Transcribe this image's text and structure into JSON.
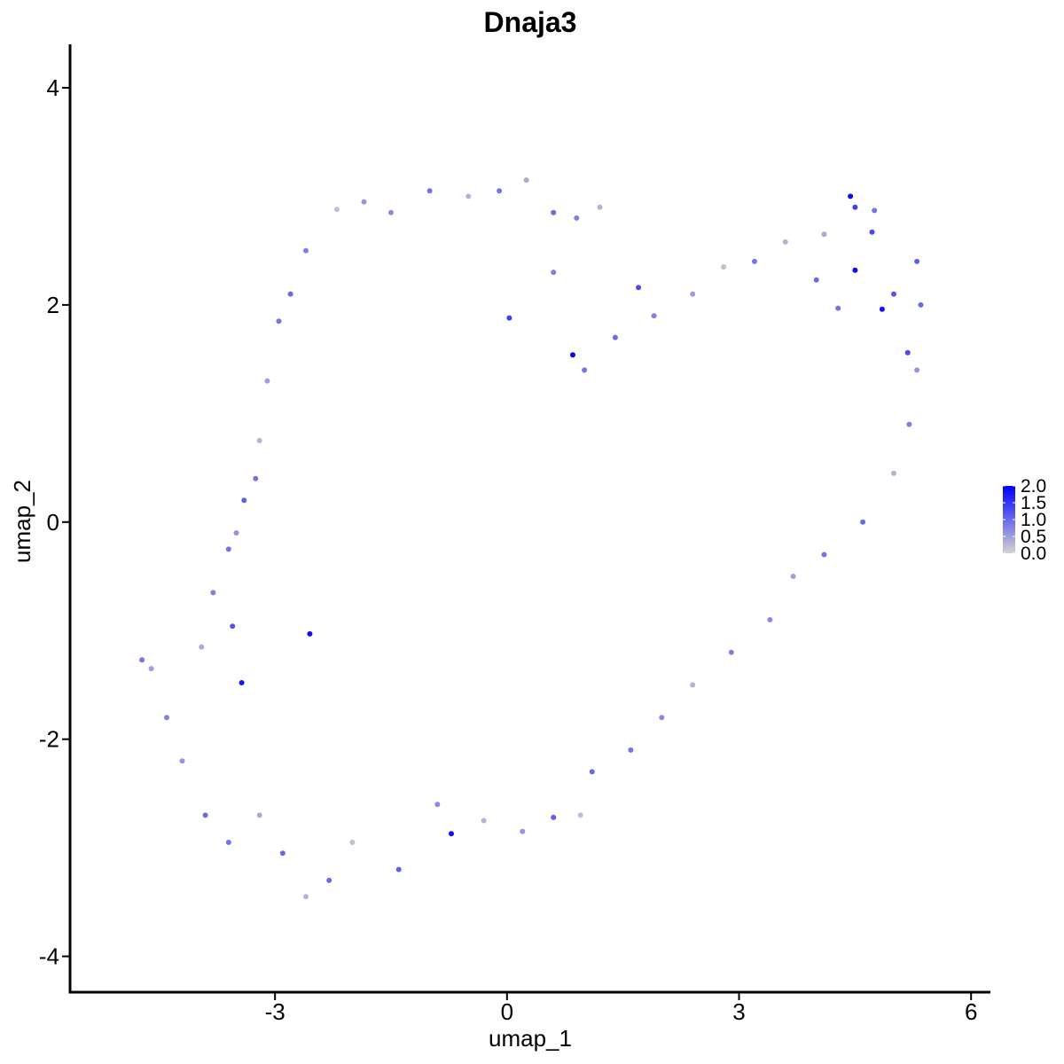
{
  "chart_data": {
    "type": "scatter",
    "title": "Dnaja3",
    "xlabel": "umap_1",
    "ylabel": "umap_2",
    "xlim": [
      -5.65,
      6.25
    ],
    "ylim": [
      -4.33,
      4.4
    ],
    "xticks": [
      -3,
      0,
      3,
      6
    ],
    "yticks": [
      -4,
      -2,
      0,
      2,
      4
    ],
    "xtick_labels": [
      "-3",
      "0",
      "3",
      "6"
    ],
    "ytick_labels": [
      "-4",
      "-2",
      "0",
      "2",
      "4"
    ],
    "grid": false,
    "point_size": 3,
    "color_scale": {
      "low": "#d3d3d3",
      "high": "#0000ff",
      "min": 0,
      "max": 2.0,
      "breaks": [
        2.0,
        1.5,
        1.0,
        0.5,
        0.0
      ],
      "break_labels": [
        "2.0",
        "1.5",
        "1.0",
        "0.5",
        "0.0"
      ]
    },
    "legend_position": "right",
    "points": [
      {
        "x": 4.44,
        "y": 3.0,
        "v": 1.9
      },
      {
        "x": 4.5,
        "y": 2.32,
        "v": 1.9
      },
      {
        "x": 4.85,
        "y": 1.96,
        "v": 1.85
      },
      {
        "x": 4.5,
        "y": 2.9,
        "v": 1.4
      },
      {
        "x": 4.72,
        "y": 2.67,
        "v": 1.3
      },
      {
        "x": 5.0,
        "y": 2.1,
        "v": 1.2
      },
      {
        "x": 5.18,
        "y": 1.56,
        "v": 1.3
      },
      {
        "x": 4.28,
        "y": 1.97,
        "v": 0.9
      },
      {
        "x": 4.0,
        "y": 2.23,
        "v": 1.0
      },
      {
        "x": 0.85,
        "y": 1.54,
        "v": 1.95
      },
      {
        "x": -2.55,
        "y": -1.03,
        "v": 1.9
      },
      {
        "x": -3.43,
        "y": -1.48,
        "v": 1.8
      },
      {
        "x": -0.72,
        "y": -2.87,
        "v": 1.9
      },
      {
        "x": 0.03,
        "y": 1.88,
        "v": 1.4
      },
      {
        "x": 1.7,
        "y": 2.16,
        "v": 1.3
      },
      {
        "x": -3.55,
        "y": -0.96,
        "v": 1.2
      },
      {
        "x": -4.72,
        "y": -1.27,
        "v": 0.9
      },
      {
        "x": -4.6,
        "y": -1.35,
        "v": 0.5
      },
      {
        "x": -4.4,
        "y": -1.8,
        "v": 0.8
      },
      {
        "x": -4.2,
        "y": -2.2,
        "v": 0.6
      },
      {
        "x": -3.9,
        "y": -2.7,
        "v": 1.0
      },
      {
        "x": -3.6,
        "y": -2.95,
        "v": 0.9
      },
      {
        "x": -3.2,
        "y": -2.7,
        "v": 0.4
      },
      {
        "x": -2.9,
        "y": -3.05,
        "v": 1.0
      },
      {
        "x": -2.6,
        "y": -3.45,
        "v": 0.3
      },
      {
        "x": -2.3,
        "y": -3.3,
        "v": 1.0
      },
      {
        "x": -2.0,
        "y": -2.95,
        "v": 0.2
      },
      {
        "x": -1.4,
        "y": -3.2,
        "v": 1.1
      },
      {
        "x": -0.9,
        "y": -2.6,
        "v": 0.7
      },
      {
        "x": -0.3,
        "y": -2.75,
        "v": 0.3
      },
      {
        "x": 0.2,
        "y": -2.85,
        "v": 0.6
      },
      {
        "x": 0.6,
        "y": -2.72,
        "v": 1.1
      },
      {
        "x": 0.95,
        "y": -2.7,
        "v": 0.2
      },
      {
        "x": 1.1,
        "y": -2.3,
        "v": 1.0
      },
      {
        "x": 1.6,
        "y": -2.1,
        "v": 0.9
      },
      {
        "x": 2.0,
        "y": -1.8,
        "v": 0.7
      },
      {
        "x": 2.4,
        "y": -1.5,
        "v": 0.3
      },
      {
        "x": 2.9,
        "y": -1.2,
        "v": 0.8
      },
      {
        "x": 3.4,
        "y": -0.9,
        "v": 0.7
      },
      {
        "x": 3.7,
        "y": -0.5,
        "v": 0.5
      },
      {
        "x": 4.1,
        "y": -0.3,
        "v": 0.9
      },
      {
        "x": 4.6,
        "y": 0.0,
        "v": 1.0
      },
      {
        "x": 5.0,
        "y": 0.45,
        "v": 0.3
      },
      {
        "x": 5.2,
        "y": 0.9,
        "v": 0.8
      },
      {
        "x": 5.3,
        "y": 1.4,
        "v": 0.6
      },
      {
        "x": 5.35,
        "y": 2.0,
        "v": 1.0
      },
      {
        "x": 5.3,
        "y": 2.4,
        "v": 1.1
      },
      {
        "x": 4.75,
        "y": 2.87,
        "v": 0.9
      },
      {
        "x": 4.1,
        "y": 2.65,
        "v": 0.4
      },
      {
        "x": 3.6,
        "y": 2.58,
        "v": 0.3
      },
      {
        "x": 3.2,
        "y": 2.4,
        "v": 0.9
      },
      {
        "x": 2.8,
        "y": 2.35,
        "v": 0.2
      },
      {
        "x": 2.4,
        "y": 2.1,
        "v": 0.5
      },
      {
        "x": 1.9,
        "y": 1.9,
        "v": 0.8
      },
      {
        "x": 1.4,
        "y": 1.7,
        "v": 1.0
      },
      {
        "x": 1.0,
        "y": 1.4,
        "v": 0.9
      },
      {
        "x": 0.6,
        "y": 2.3,
        "v": 0.8
      },
      {
        "x": 1.2,
        "y": 2.9,
        "v": 0.3
      },
      {
        "x": 0.9,
        "y": 2.8,
        "v": 0.8
      },
      {
        "x": 0.6,
        "y": 2.85,
        "v": 1.0
      },
      {
        "x": 0.25,
        "y": 3.15,
        "v": 0.4
      },
      {
        "x": -0.1,
        "y": 3.05,
        "v": 0.9
      },
      {
        "x": -0.5,
        "y": 3.0,
        "v": 0.3
      },
      {
        "x": -1.0,
        "y": 3.05,
        "v": 0.9
      },
      {
        "x": -1.5,
        "y": 2.85,
        "v": 0.7
      },
      {
        "x": -1.85,
        "y": 2.95,
        "v": 0.6
      },
      {
        "x": -2.2,
        "y": 2.88,
        "v": 0.2
      },
      {
        "x": -2.6,
        "y": 2.5,
        "v": 0.8
      },
      {
        "x": -2.8,
        "y": 2.1,
        "v": 1.0
      },
      {
        "x": -2.95,
        "y": 1.85,
        "v": 0.9
      },
      {
        "x": -3.1,
        "y": 1.3,
        "v": 0.5
      },
      {
        "x": -3.2,
        "y": 0.75,
        "v": 0.3
      },
      {
        "x": -3.25,
        "y": 0.4,
        "v": 0.9
      },
      {
        "x": -3.4,
        "y": 0.2,
        "v": 1.1
      },
      {
        "x": -3.5,
        "y": -0.1,
        "v": 0.6
      },
      {
        "x": -3.6,
        "y": -0.25,
        "v": 0.9
      },
      {
        "x": -3.8,
        "y": -0.65,
        "v": 0.8
      },
      {
        "x": -3.95,
        "y": -1.15,
        "v": 0.4
      }
    ]
  }
}
